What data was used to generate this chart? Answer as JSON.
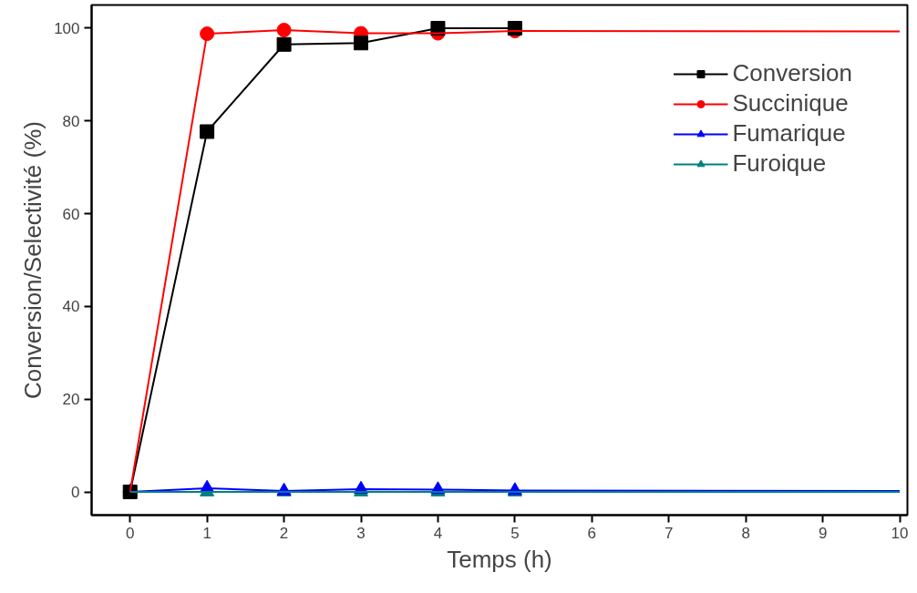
{
  "chart_data": {
    "type": "line",
    "xlabel": "Temps (h)",
    "ylabel": "Conversion/Selectivité (%)",
    "xlim": [
      -0.5,
      10.1
    ],
    "ylim": [
      -5,
      105
    ],
    "xticks": [
      0,
      1,
      2,
      3,
      4,
      5,
      6,
      7,
      8,
      9,
      10
    ],
    "yticks": [
      0,
      20,
      40,
      60,
      80,
      100
    ],
    "grid": false,
    "legend": "top right",
    "line_style": "solid",
    "series": [
      {
        "name": "Conversion",
        "color": "#000000",
        "marker": "square",
        "x": [
          0,
          1,
          2,
          3,
          4,
          5
        ],
        "values": [
          0,
          77.7,
          96.5,
          96.8,
          100,
          100
        ]
      },
      {
        "name": "Succinique",
        "color": "#ff0000",
        "marker": "circle",
        "x": [
          0,
          1,
          2,
          3,
          4,
          5
        ],
        "values": [
          0,
          98.8,
          99.6,
          98.9,
          98.9,
          99.4
        ]
      },
      {
        "name": "Fumarique",
        "color": "#0000ff",
        "marker": "triangle",
        "x": [
          0,
          1,
          2,
          3,
          4,
          5
        ],
        "values": [
          0,
          0.8,
          0.2,
          0.6,
          0.5,
          0.3
        ]
      },
      {
        "name": "Furoique",
        "color": "#008080",
        "marker": "triangle",
        "x": [
          0,
          1,
          2,
          3,
          4,
          5
        ],
        "values": [
          0,
          0,
          0,
          0,
          0,
          0
        ]
      },
      {
        "color": "#ff0000",
        "marker": "none",
        "x": [
          5,
          10
        ],
        "values": [
          99.4,
          99.3
        ]
      },
      {
        "color": "#0000ff",
        "marker": "none",
        "x": [
          5,
          10
        ],
        "values": [
          0.3,
          0.2
        ]
      },
      {
        "color": "#008080",
        "marker": "none",
        "x": [
          5,
          10
        ],
        "values": [
          0,
          0
        ]
      }
    ]
  }
}
